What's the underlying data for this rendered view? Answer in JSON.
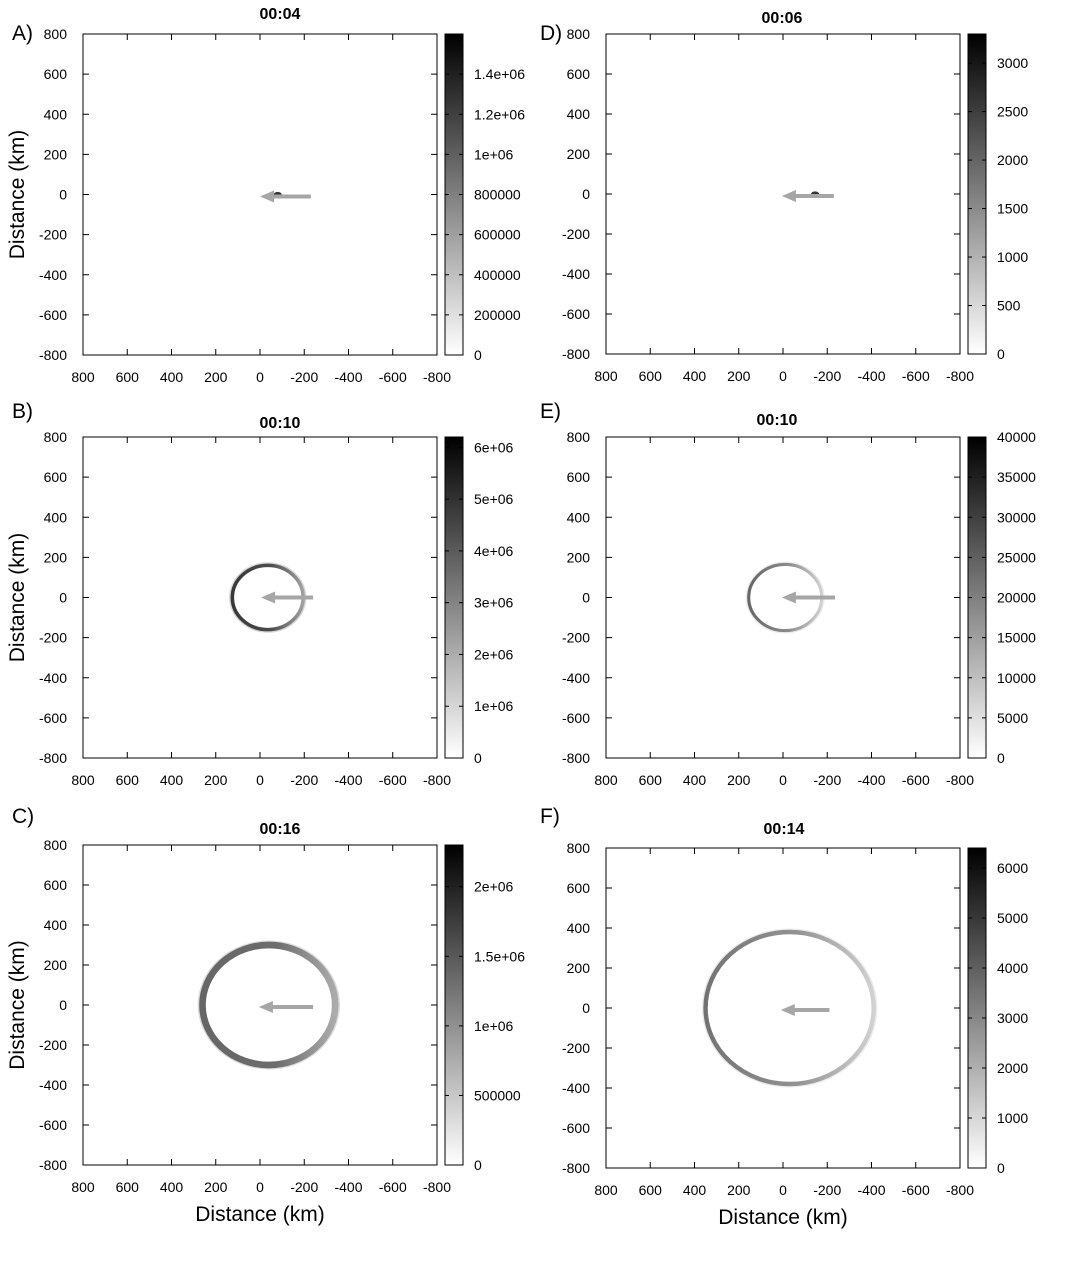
{
  "figure": {
    "shared_xlabel": "Distance (km)",
    "shared_ylabel": "Distance (km)"
  },
  "chart_data": [
    {
      "id": "A",
      "type": "heatmap",
      "panel_label": "A)",
      "title": "00:04",
      "xlabel": "",
      "ylabel": "Distance (km)",
      "xlim": [
        800,
        -800
      ],
      "ylim": [
        -800,
        800
      ],
      "xticks": [
        "800",
        "600",
        "400",
        "200",
        "0",
        "-200",
        "-400",
        "-600",
        "-800"
      ],
      "yticks": [
        "800",
        "600",
        "400",
        "200",
        "0",
        "-200",
        "-400",
        "-600",
        "-800"
      ],
      "colorbar": {
        "range": [
          0,
          1600000
        ],
        "ticks": [
          0,
          200000,
          400000,
          600000,
          800000,
          1000000,
          1200000,
          1400000
        ],
        "tick_labels": [
          "0",
          "200000",
          "400000",
          "600000",
          "800000",
          "1e+06",
          "1.2e+06",
          "1.4e+06"
        ]
      },
      "feature": {
        "kind": "spot",
        "center": [
          -80,
          0
        ],
        "radius": 22,
        "intensity": 0.5
      },
      "arrow": {
        "from": [
          -230,
          -10
        ],
        "to": [
          0,
          -10
        ]
      }
    },
    {
      "id": "B",
      "type": "heatmap",
      "panel_label": "B)",
      "title": "00:10",
      "xlabel": "",
      "ylabel": "Distance (km)",
      "xlim": [
        800,
        -800
      ],
      "ylim": [
        -800,
        800
      ],
      "xticks": [
        "800",
        "600",
        "400",
        "200",
        "0",
        "-200",
        "-400",
        "-600",
        "-800"
      ],
      "yticks": [
        "800",
        "600",
        "400",
        "200",
        "0",
        "-200",
        "-400",
        "-600",
        "-800"
      ],
      "colorbar": {
        "range": [
          0,
          6200000
        ],
        "ticks": [
          0,
          1000000,
          2000000,
          3000000,
          4000000,
          5000000,
          6000000
        ],
        "tick_labels": [
          "0",
          "1e+06",
          "2e+06",
          "3e+06",
          "4e+06",
          "5e+06",
          "6e+06"
        ]
      },
      "feature": {
        "kind": "ring",
        "center": [
          -35,
          0
        ],
        "radius": 160,
        "width": 16,
        "intensity": 0.62,
        "left_intensity": 0.78
      },
      "arrow": {
        "from": [
          -240,
          0
        ],
        "to": [
          -5,
          0
        ]
      }
    },
    {
      "id": "C",
      "type": "heatmap",
      "panel_label": "C)",
      "title": "00:16",
      "xlabel": "Distance (km)",
      "ylabel": "Distance (km)",
      "xlim": [
        800,
        -800
      ],
      "ylim": [
        -800,
        800
      ],
      "xticks": [
        "800",
        "600",
        "400",
        "200",
        "0",
        "-200",
        "-400",
        "-600",
        "-800"
      ],
      "yticks": [
        "800",
        "600",
        "400",
        "200",
        "0",
        "-200",
        "-400",
        "-600",
        "-800"
      ],
      "colorbar": {
        "range": [
          0,
          2300000
        ],
        "ticks": [
          0,
          500000,
          1000000,
          1500000,
          2000000
        ],
        "tick_labels": [
          "0",
          "500000",
          "1e+06",
          "1.5e+06",
          "2e+06"
        ]
      },
      "feature": {
        "kind": "ring",
        "center": [
          -40,
          0
        ],
        "radius": 300,
        "width": 30,
        "intensity": 0.55,
        "left_intensity": 0.6
      },
      "arrow": {
        "from": [
          -240,
          -10
        ],
        "to": [
          5,
          -10
        ]
      }
    },
    {
      "id": "D",
      "type": "heatmap",
      "panel_label": "D)",
      "title": "00:06",
      "xlabel": "",
      "ylabel": "",
      "xlim": [
        800,
        -800
      ],
      "ylim": [
        -800,
        800
      ],
      "xticks": [
        "800",
        "600",
        "400",
        "200",
        "0",
        "-200",
        "-400",
        "-600",
        "-800"
      ],
      "yticks": [
        "800",
        "600",
        "400",
        "200",
        "0",
        "-200",
        "-400",
        "-600",
        "-800"
      ],
      "colorbar": {
        "range": [
          0,
          3300
        ],
        "ticks": [
          0,
          500,
          1000,
          1500,
          2000,
          2500,
          3000
        ],
        "tick_labels": [
          "0",
          "500",
          "1000",
          "1500",
          "2000",
          "2500",
          "3000"
        ]
      },
      "feature": {
        "kind": "spot",
        "center": [
          -145,
          0
        ],
        "radius": 22,
        "intensity": 0.5
      },
      "arrow": {
        "from": [
          -230,
          -10
        ],
        "to": [
          5,
          -10
        ]
      }
    },
    {
      "id": "E",
      "type": "heatmap",
      "panel_label": "E)",
      "title": "00:10",
      "xlabel": "",
      "ylabel": "",
      "xlim": [
        800,
        -800
      ],
      "ylim": [
        -800,
        800
      ],
      "xticks": [
        "800",
        "600",
        "400",
        "200",
        "0",
        "-200",
        "-400",
        "-600",
        "-800"
      ],
      "yticks": [
        "800",
        "600",
        "400",
        "200",
        "0",
        "-200",
        "-400",
        "-600",
        "-800"
      ],
      "colorbar": {
        "range": [
          0,
          40000
        ],
        "ticks": [
          0,
          5000,
          10000,
          15000,
          20000,
          25000,
          30000,
          35000,
          40000
        ],
        "tick_labels": [
          "0",
          "5000",
          "10000",
          "15000",
          "20000",
          "25000",
          "30000",
          "35000",
          "40000"
        ]
      },
      "feature": {
        "kind": "ring",
        "center": [
          -10,
          0
        ],
        "radius": 165,
        "width": 14,
        "intensity": 0.3,
        "left_intensity": 0.6
      },
      "arrow": {
        "from": [
          -235,
          0
        ],
        "to": [
          5,
          0
        ]
      }
    },
    {
      "id": "F",
      "type": "heatmap",
      "panel_label": "F)",
      "title": "00:14",
      "xlabel": "Distance (km)",
      "ylabel": "",
      "xlim": [
        800,
        -800
      ],
      "ylim": [
        -800,
        800
      ],
      "xticks": [
        "800",
        "600",
        "400",
        "200",
        "0",
        "-200",
        "-400",
        "-600",
        "-800"
      ],
      "yticks": [
        "800",
        "600",
        "400",
        "200",
        "0",
        "-200",
        "-400",
        "-600",
        "-800"
      ],
      "colorbar": {
        "range": [
          0,
          6400
        ],
        "ticks": [
          0,
          1000,
          2000,
          3000,
          4000,
          5000,
          6000
        ],
        "tick_labels": [
          "0",
          "1000",
          "2000",
          "3000",
          "4000",
          "5000",
          "6000"
        ]
      },
      "feature": {
        "kind": "ring",
        "center": [
          -30,
          0
        ],
        "radius": 380,
        "width": 20,
        "intensity": 0.3,
        "left_intensity": 0.55
      },
      "arrow": {
        "from": [
          -210,
          -10
        ],
        "to": [
          10,
          -10
        ]
      }
    }
  ]
}
